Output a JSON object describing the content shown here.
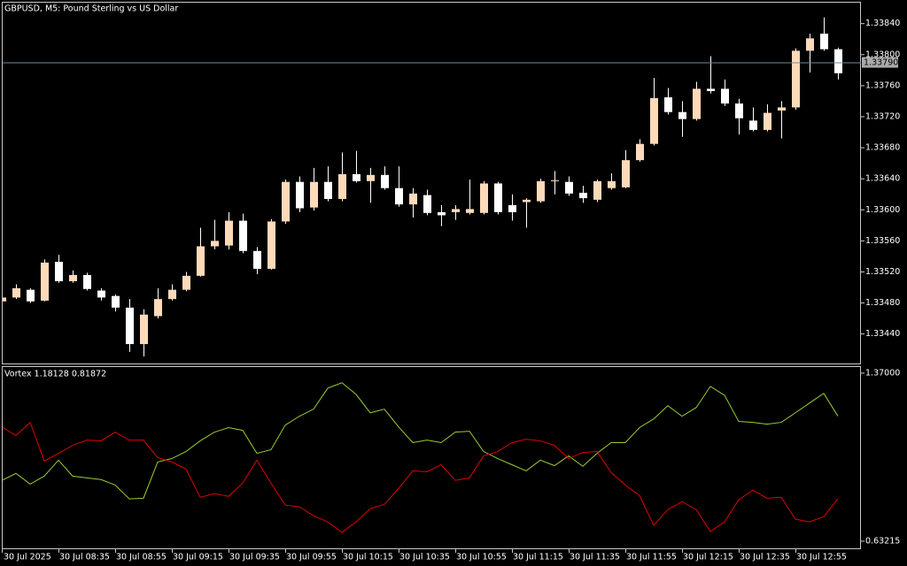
{
  "chart_data": [
    {
      "type": "candlestick",
      "title": "GBPUSD, M5:  Pound Sterling vs US Dollar",
      "categories": [
        "30 Jul 2025",
        null,
        null,
        null,
        "30 Jul 08:35",
        null,
        null,
        null,
        "30 Jul 08:55",
        null,
        null,
        null,
        "30 Jul 09:15",
        null,
        null,
        null,
        "30 Jul 09:35",
        null,
        null,
        null,
        "30 Jul 09:55",
        null,
        null,
        null,
        "30 Jul 10:15",
        null,
        null,
        null,
        "30 Jul 10:35",
        null,
        null,
        null,
        "30 Jul 10:55",
        null,
        null,
        null,
        "30 Jul 11:15",
        null,
        null,
        null,
        "30 Jul 11:35",
        null,
        null,
        null,
        "30 Jul 11:55",
        null,
        null,
        null,
        "30 Jul 12:15",
        null,
        null,
        null,
        "30 Jul 12:35",
        null,
        null,
        null,
        "30 Jul 12:55",
        null,
        null,
        null
      ],
      "open": [
        1.33482,
        1.33487,
        1.33497,
        1.33483,
        1.33533,
        1.33508,
        1.33516,
        1.33496,
        1.33489,
        1.33474,
        1.33427,
        1.33463,
        1.33485,
        1.33497,
        1.33515,
        1.33553,
        1.33554,
        1.33586,
        1.33547,
        1.33524,
        1.33585,
        1.33636,
        1.33603,
        1.33636,
        1.33614,
        1.33646,
        1.33637,
        1.33645,
        1.33628,
        1.33607,
        1.33619,
        1.33597,
        1.33597,
        1.33596,
        1.33596,
        1.33634,
        1.33606,
        1.3361,
        1.33611,
        1.33637,
        1.33636,
        1.33622,
        1.33613,
        1.33628,
        1.33629,
        1.33664,
        1.33685,
        1.33745,
        1.33726,
        1.33717,
        1.33756,
        1.33756,
        1.33737,
        1.33715,
        1.33703,
        1.33728,
        1.33732,
        1.33805,
        1.33827,
        1.33807
      ],
      "high": [
        1.33489,
        1.33504,
        1.33499,
        1.33536,
        1.33542,
        1.33522,
        1.33519,
        1.33499,
        1.33491,
        1.33485,
        1.33472,
        1.33499,
        1.33504,
        1.3352,
        1.33577,
        1.33587,
        1.33597,
        1.33595,
        1.33552,
        1.33588,
        1.33639,
        1.33643,
        1.33654,
        1.33656,
        1.33674,
        1.33676,
        1.33654,
        1.33656,
        1.33656,
        1.33628,
        1.33626,
        1.33606,
        1.33606,
        1.33639,
        1.33637,
        1.33636,
        1.3362,
        1.33615,
        1.3364,
        1.3365,
        1.33643,
        1.33631,
        1.33639,
        1.33647,
        1.33677,
        1.33691,
        1.3377,
        1.33757,
        1.3374,
        1.33765,
        1.33798,
        1.33768,
        1.33743,
        1.33732,
        1.33736,
        1.3374,
        1.33808,
        1.33827,
        1.33848,
        1.33809
      ],
      "low": [
        1.3348,
        1.33485,
        1.3348,
        1.33482,
        1.33506,
        1.33506,
        1.33496,
        1.33483,
        1.33469,
        1.33417,
        1.33411,
        1.3346,
        1.33483,
        1.33495,
        1.33514,
        1.33549,
        1.33549,
        1.33544,
        1.33517,
        1.33523,
        1.33582,
        1.33597,
        1.33599,
        1.33611,
        1.33611,
        1.33635,
        1.33609,
        1.33626,
        1.33604,
        1.3359,
        1.33593,
        1.33579,
        1.33587,
        1.33594,
        1.33594,
        1.33594,
        1.33586,
        1.33577,
        1.33609,
        1.3362,
        1.33618,
        1.33609,
        1.3361,
        1.33626,
        1.33628,
        1.33662,
        1.33683,
        1.33723,
        1.33694,
        1.33715,
        1.3375,
        1.33734,
        1.33697,
        1.33701,
        1.33701,
        1.33692,
        1.33729,
        1.33777,
        1.33805,
        1.33768
      ],
      "close": [
        1.33487,
        1.33499,
        1.33482,
        1.33532,
        1.33508,
        1.33516,
        1.33498,
        1.33487,
        1.33474,
        1.33427,
        1.33465,
        1.33485,
        1.33497,
        1.33515,
        1.33553,
        1.3356,
        1.33586,
        1.33547,
        1.33524,
        1.33585,
        1.33636,
        1.33602,
        1.33636,
        1.33614,
        1.33646,
        1.33637,
        1.33645,
        1.33628,
        1.33607,
        1.33621,
        1.33596,
        1.33593,
        1.33601,
        1.33601,
        1.33634,
        1.33597,
        1.33597,
        1.33613,
        1.33637,
        1.33638,
        1.33621,
        1.33615,
        1.33637,
        1.33637,
        1.33664,
        1.33685,
        1.33744,
        1.33726,
        1.33717,
        1.33756,
        1.33753,
        1.33737,
        1.33718,
        1.33703,
        1.33725,
        1.33732,
        1.33805,
        1.33821,
        1.33807,
        1.33776
      ],
      "up_color": "#ffdab9",
      "down_color": "#ffffff",
      "ylim": [
        1.33402,
        1.33867
      ],
      "yticks": [
        {
          "value": 1.3384,
          "label": "1.33840"
        },
        {
          "value": 1.338,
          "label": "1.33800"
        },
        {
          "value": 1.3376,
          "label": "1.33760"
        },
        {
          "value": 1.3372,
          "label": "1.33720"
        },
        {
          "value": 1.3368,
          "label": "1.33680"
        },
        {
          "value": 1.3364,
          "label": "1.33640"
        },
        {
          "value": 1.336,
          "label": "1.33600"
        },
        {
          "value": 1.3356,
          "label": "1.33560"
        },
        {
          "value": 1.3352,
          "label": "1.33520"
        },
        {
          "value": 1.3348,
          "label": "1.33480"
        },
        {
          "value": 1.3344,
          "label": "1.33440"
        }
      ],
      "bid": {
        "value": 1.3379,
        "label": "1.33790"
      }
    },
    {
      "type": "line",
      "title": "Vortex 1.18128 0.81872",
      "series": [
        {
          "color": "#9acd32",
          "values": [
            0.899,
            0.93,
            0.883,
            0.918,
            0.988,
            0.918,
            0.91,
            0.903,
            0.879,
            0.818,
            0.821,
            0.98,
            0.995,
            1.026,
            1.073,
            1.111,
            1.131,
            1.119,
            1.018,
            1.034,
            1.142,
            1.181,
            1.212,
            1.304,
            1.328,
            1.277,
            1.196,
            1.212,
            1.134,
            1.065,
            1.076,
            1.065,
            1.111,
            1.115,
            1.026,
            0.995,
            0.968,
            0.941,
            0.988,
            0.964,
            1.007,
            0.961,
            1.018,
            1.065,
            1.065,
            1.131,
            1.169,
            1.227,
            1.181,
            1.219,
            1.312,
            1.273,
            1.158,
            1.154,
            1.146,
            1.154,
            1.196,
            1.239,
            1.281,
            1.18128
          ]
        },
        {
          "color": "#e00000",
          "values": [
            1.134,
            1.096,
            1.154,
            0.984,
            1.018,
            1.053,
            1.076,
            1.073,
            1.111,
            1.076,
            1.076,
            0.999,
            0.98,
            0.949,
            0.825,
            0.841,
            0.829,
            0.887,
            0.988,
            0.887,
            0.791,
            0.783,
            0.744,
            0.717,
            0.671,
            0.717,
            0.775,
            0.794,
            0.864,
            0.941,
            0.937,
            0.968,
            0.899,
            0.91,
            1.007,
            1.026,
            1.065,
            1.08,
            1.073,
            1.053,
            0.995,
            1.022,
            1.026,
            0.934,
            0.879,
            0.833,
            0.702,
            0.771,
            0.806,
            0.771,
            0.675,
            0.717,
            0.814,
            0.856,
            0.821,
            0.825,
            0.729,
            0.717,
            0.74,
            0.81872
          ]
        }
      ],
      "ylim": [
        0.601,
        1.397
      ],
      "yticks": [
        {
          "value": 1.37,
          "label": "1.37000"
        },
        0.63215
      ]
    }
  ]
}
